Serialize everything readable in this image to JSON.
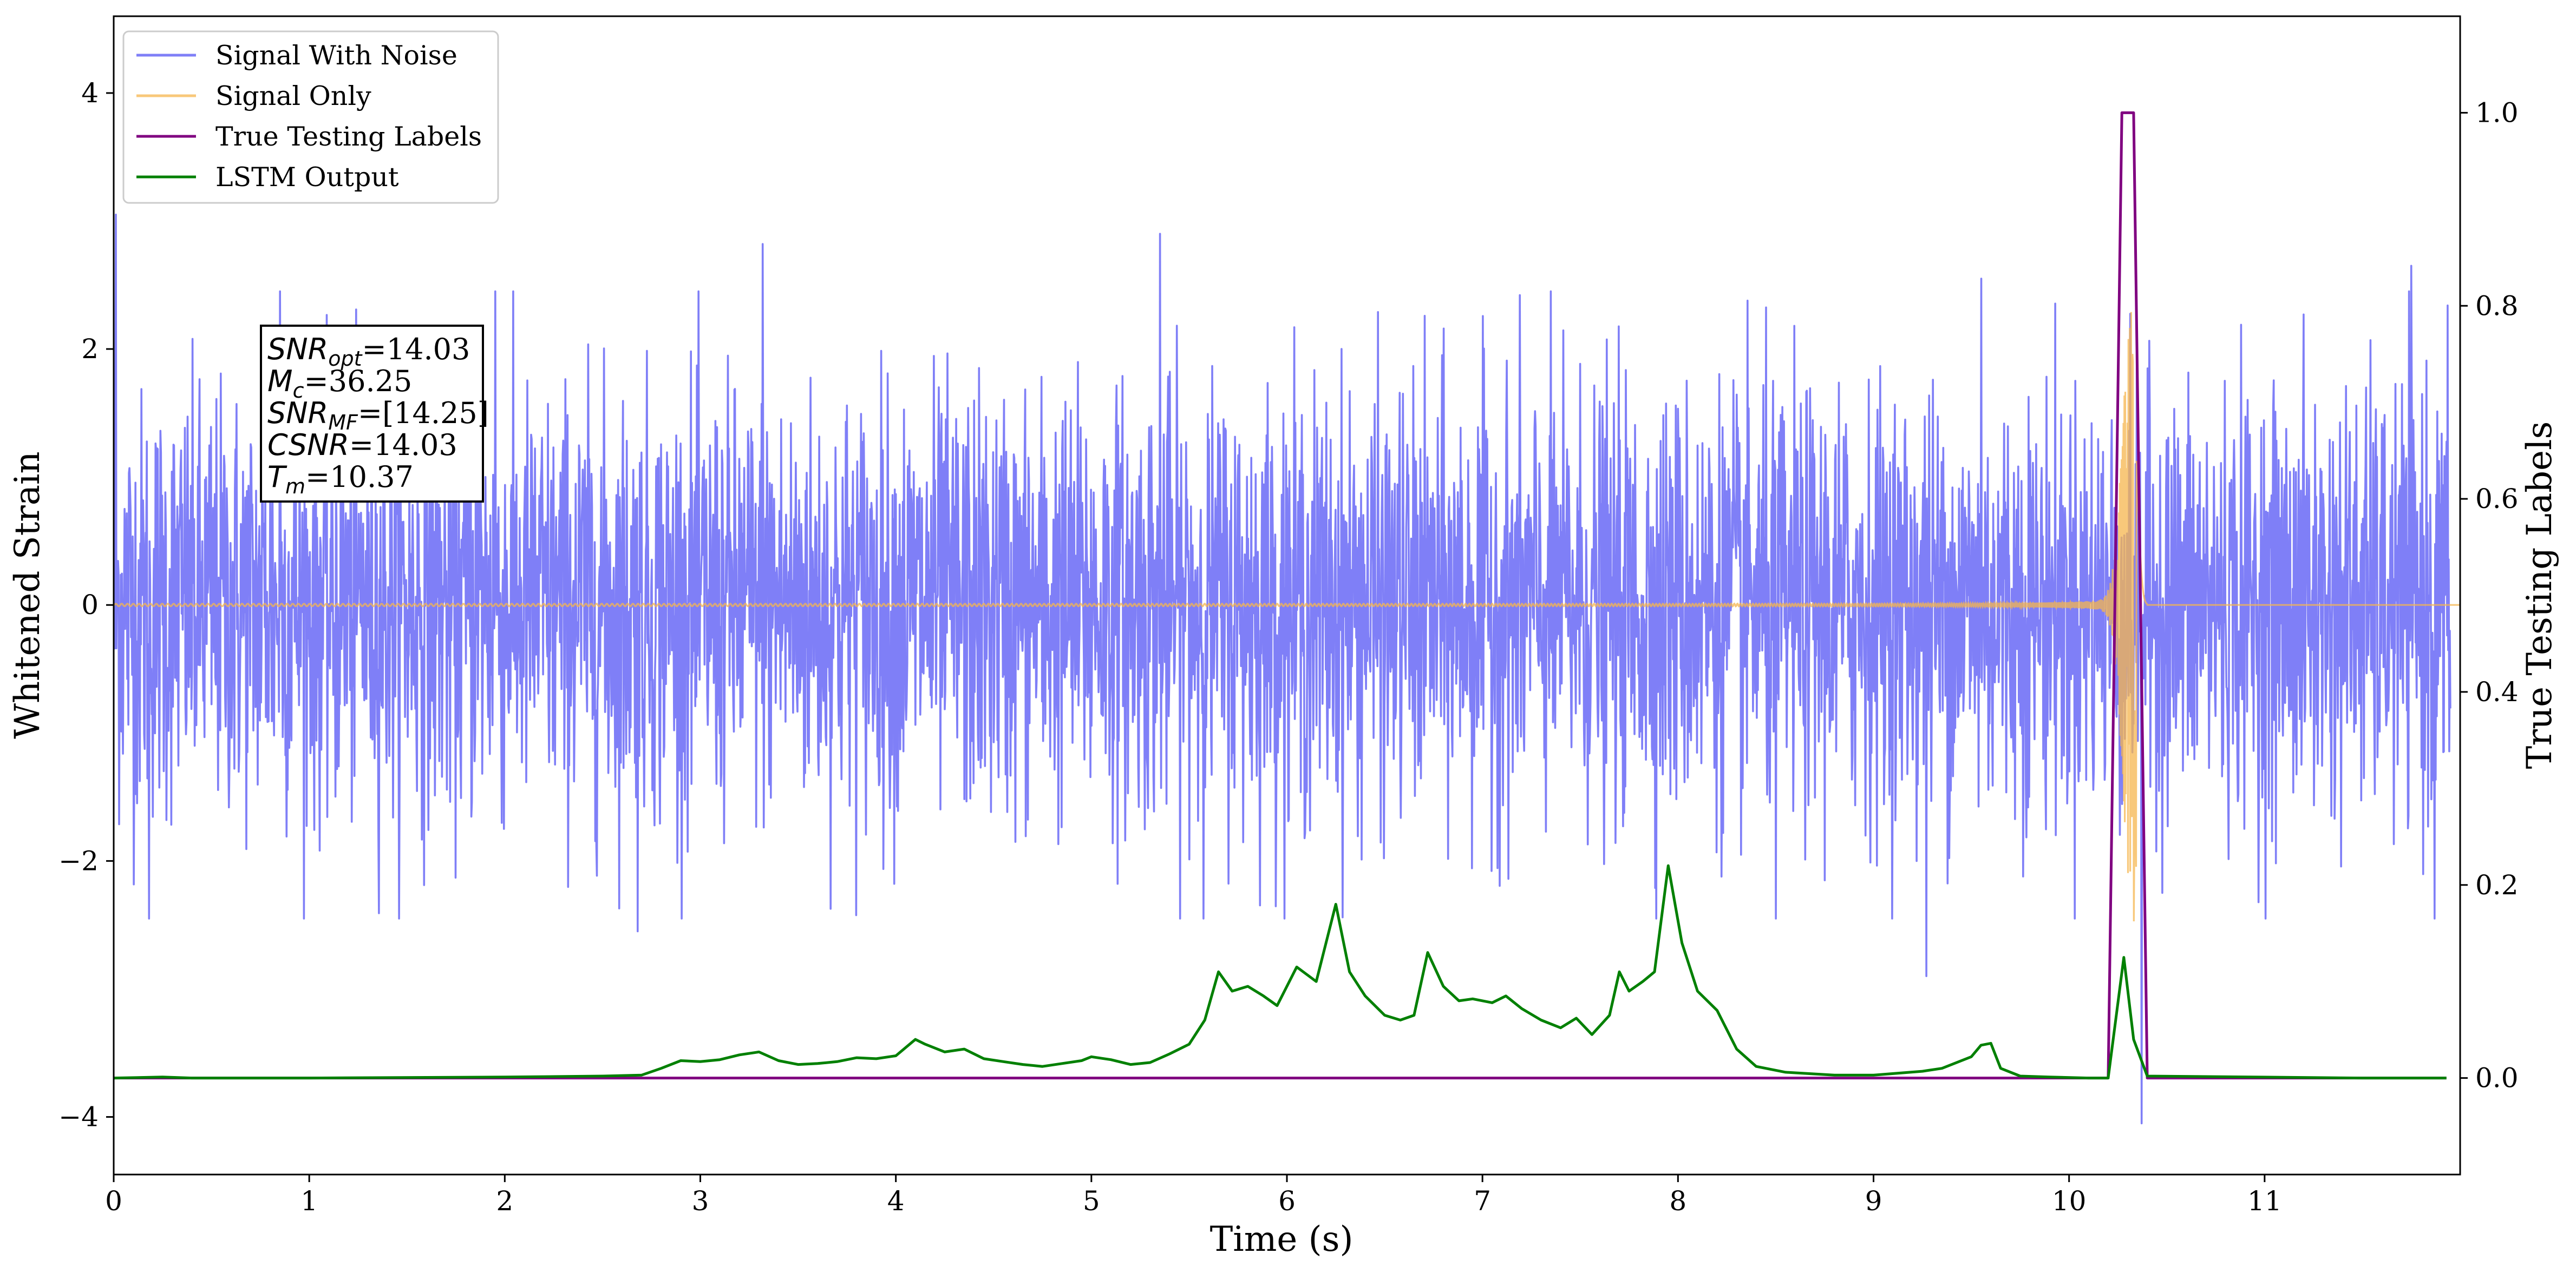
{
  "chart_data": {
    "type": "line",
    "xlabel": "Time (s)",
    "ylabel": "Whitened Strain",
    "y2label": "True Testing Labels",
    "xlim": [
      0,
      12.0
    ],
    "ylim": [
      -4.45,
      4.6
    ],
    "y2lim": [
      -0.1,
      1.1
    ],
    "xticks": [
      0,
      1,
      2,
      3,
      4,
      5,
      6,
      7,
      8,
      9,
      10,
      11
    ],
    "yticks": [
      -4,
      -2,
      0,
      2,
      4
    ],
    "y2ticks": [
      0.0,
      0.2,
      0.4,
      0.6,
      0.8,
      1.0
    ],
    "xtick_labels": [
      "0",
      "1",
      "2",
      "3",
      "4",
      "5",
      "6",
      "7",
      "8",
      "9",
      "10",
      "11"
    ],
    "ytick_labels": [
      "−4",
      "−2",
      "0",
      "2",
      "4"
    ],
    "y2tick_labels": [
      "0.0",
      "0.2",
      "0.4",
      "0.6",
      "0.8",
      "1.0"
    ],
    "grid": false,
    "legend_position": "upper-left",
    "series": [
      {
        "name": "Signal With Noise",
        "color": "#7f7ff7",
        "axis": "left",
        "kind": "noise",
        "noise_envelope": {
          "typical_range": [
            -1.6,
            1.6
          ],
          "peaks": [
            {
              "x": 0.01,
              "y": 3.05
            },
            {
              "x": 0.85,
              "y": 2.45
            },
            {
              "x": 1.95,
              "y": 2.45
            },
            {
              "x": 3.32,
              "y": 2.82
            },
            {
              "x": 5.35,
              "y": 2.9
            },
            {
              "x": 9.55,
              "y": 2.55
            },
            {
              "x": 11.75,
              "y": 2.65
            },
            {
              "x": 0.18,
              "y": -2.45
            },
            {
              "x": 2.68,
              "y": -2.55
            },
            {
              "x": 8.5,
              "y": -2.45
            },
            {
              "x": 9.27,
              "y": -2.9
            },
            {
              "x": 10.37,
              "y": -4.05
            },
            {
              "x": 11.87,
              "y": -2.45
            }
          ]
        }
      },
      {
        "name": "Signal Only",
        "color": "#f5b54d",
        "axis": "left",
        "kind": "chirp",
        "chirp": {
          "baseline_amplitude": 0.01,
          "peak_x": 10.33,
          "peak_amplitude": 2.5,
          "end_x": 10.4
        }
      },
      {
        "name": "True Testing Labels",
        "color": "#800080",
        "axis": "right",
        "x": [
          0,
          10.2,
          10.27,
          10.33,
          10.4,
          11.93
        ],
        "y": [
          0,
          0,
          1,
          1,
          0,
          0
        ]
      },
      {
        "name": "LSTM Output",
        "color": "#008000",
        "axis": "right",
        "x": [
          0,
          0.25,
          0.4,
          1.0,
          2.0,
          2.5,
          2.7,
          2.8,
          2.9,
          3.0,
          3.1,
          3.2,
          3.3,
          3.4,
          3.5,
          3.6,
          3.7,
          3.8,
          3.9,
          4.0,
          4.1,
          4.15,
          4.25,
          4.35,
          4.45,
          4.55,
          4.65,
          4.75,
          4.85,
          4.95,
          5.0,
          5.1,
          5.2,
          5.3,
          5.4,
          5.5,
          5.58,
          5.65,
          5.72,
          5.8,
          5.88,
          5.95,
          6.05,
          6.15,
          6.25,
          6.32,
          6.4,
          6.5,
          6.58,
          6.65,
          6.72,
          6.8,
          6.88,
          6.95,
          7.05,
          7.12,
          7.2,
          7.3,
          7.4,
          7.48,
          7.56,
          7.65,
          7.7,
          7.75,
          7.82,
          7.88,
          7.95,
          8.02,
          8.1,
          8.2,
          8.3,
          8.4,
          8.55,
          8.8,
          9.0,
          9.25,
          9.35,
          9.5,
          9.55,
          9.6,
          9.65,
          9.75,
          9.9,
          10.1,
          10.2,
          10.28,
          10.33,
          10.4,
          11.5,
          11.93
        ],
        "y": [
          0,
          0.001,
          0.0,
          0.0,
          0.001,
          0.002,
          0.003,
          0.01,
          0.018,
          0.017,
          0.019,
          0.024,
          0.027,
          0.018,
          0.014,
          0.015,
          0.017,
          0.021,
          0.02,
          0.023,
          0.04,
          0.035,
          0.027,
          0.03,
          0.02,
          0.017,
          0.014,
          0.012,
          0.015,
          0.018,
          0.022,
          0.019,
          0.014,
          0.016,
          0.025,
          0.035,
          0.06,
          0.11,
          0.09,
          0.095,
          0.085,
          0.075,
          0.115,
          0.1,
          0.18,
          0.11,
          0.085,
          0.065,
          0.06,
          0.065,
          0.13,
          0.095,
          0.08,
          0.082,
          0.078,
          0.085,
          0.072,
          0.06,
          0.052,
          0.062,
          0.045,
          0.065,
          0.11,
          0.09,
          0.1,
          0.11,
          0.22,
          0.14,
          0.09,
          0.07,
          0.03,
          0.012,
          0.006,
          0.003,
          0.003,
          0.007,
          0.01,
          0.022,
          0.034,
          0.036,
          0.01,
          0.002,
          0.001,
          0.0,
          0.0,
          0.125,
          0.04,
          0.002,
          0.0,
          0.0
        ]
      }
    ],
    "annotation": {
      "lines": [
        {
          "base": "SNR",
          "sub": "opt",
          "value": "=14.03"
        },
        {
          "base": "M",
          "sub": "c",
          "value": "=36.25"
        },
        {
          "base": "SNR",
          "sub": "MF",
          "value": "=[14.25]"
        },
        {
          "base": "CSNR",
          "sub": "",
          "value": "=14.03"
        },
        {
          "base": "T",
          "sub": "m",
          "value": "=10.37"
        }
      ]
    }
  }
}
